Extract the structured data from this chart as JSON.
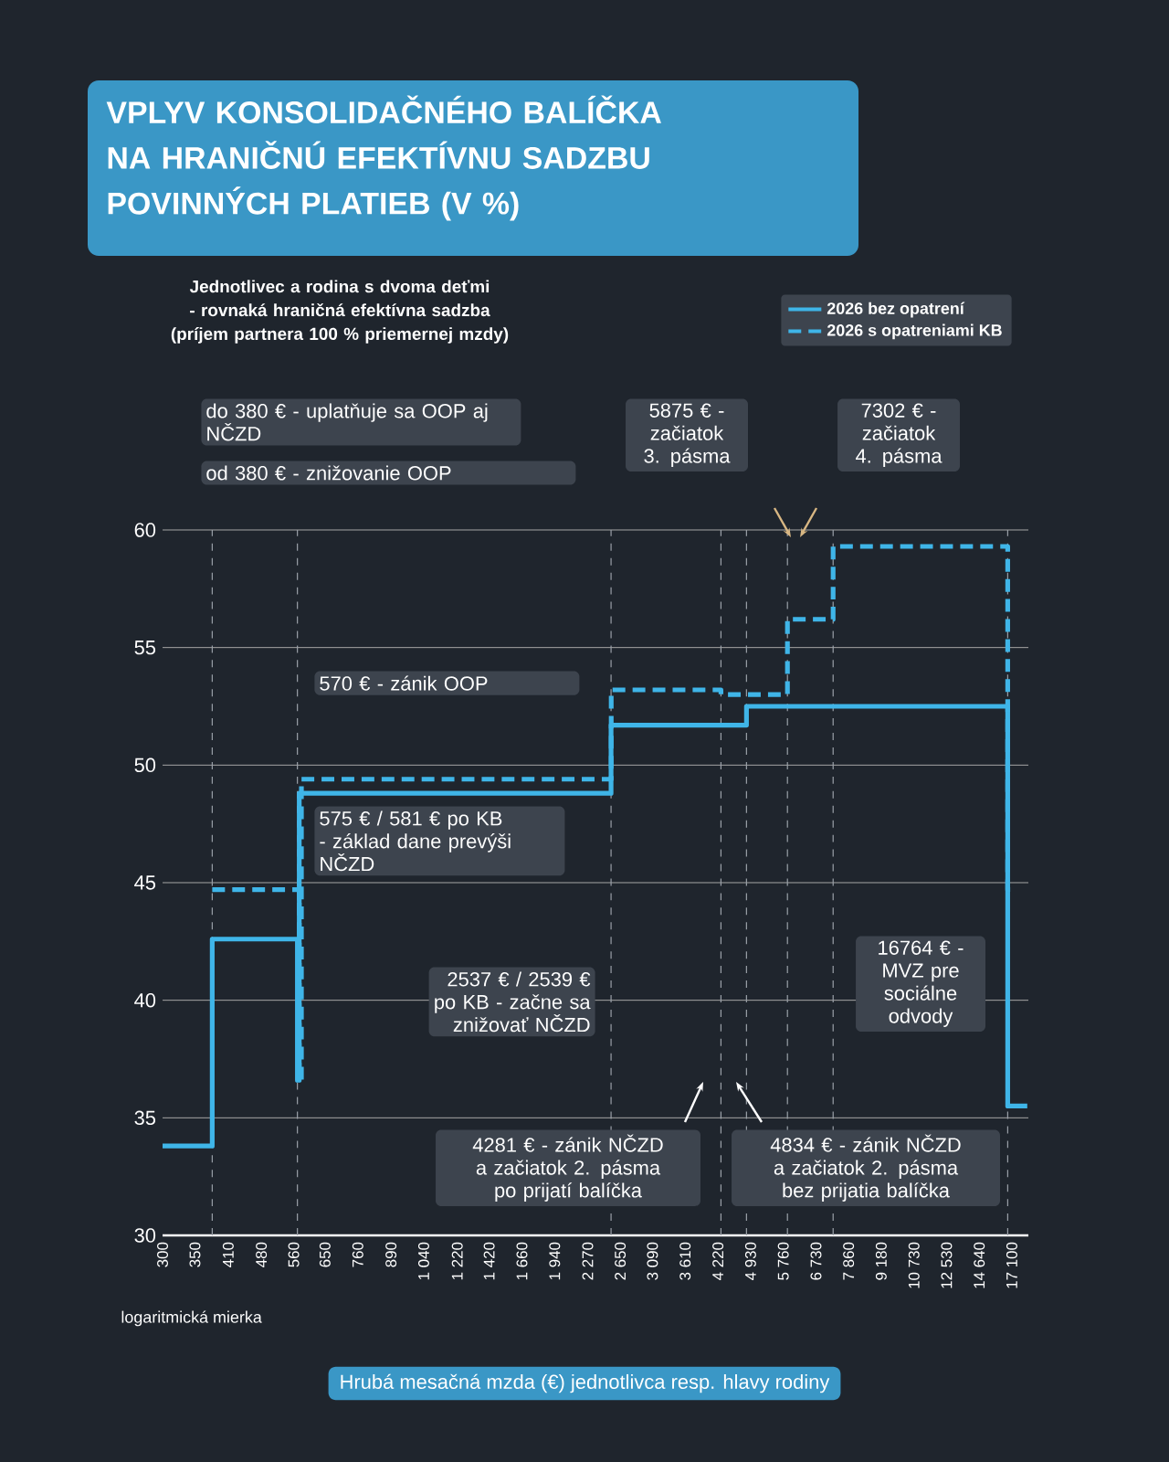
{
  "chart_data": {
    "type": "step",
    "title": "VPLYV KONSOLIDAČNÉHO BALÍČKA NA HRANIČNÚ EFEKTÍVNU SADZBU POVINNÝCH PLATIEB (V %)",
    "subtitle": "Jednotlivec a rodina s dvoma deťmi - rovnaká hraničná efektívna sadzba (príjem partnera 100 % priemernej mzdy)",
    "xlabel": "Hrubá mesačná mzda (€) jednotlivca resp. hlavy rodiny",
    "log": "x",
    "xlim": [
      300,
      18500
    ],
    "ylim": [
      30,
      60
    ],
    "xticks": [
      300,
      350,
      410,
      480,
      560,
      650,
      760,
      890,
      {
        "value": 1040,
        "label": "1 040"
      },
      {
        "value": 1220,
        "label": "1 220"
      },
      {
        "value": 1420,
        "label": "1 420"
      },
      {
        "value": 1660,
        "label": "1 660"
      },
      {
        "value": 1940,
        "label": "1 940"
      },
      {
        "value": 2270,
        "label": "2 270"
      },
      {
        "value": 2650,
        "label": "2 650"
      },
      {
        "value": 3090,
        "label": "3 090"
      },
      {
        "value": 3610,
        "label": "3 610"
      },
      {
        "value": 4220,
        "label": "4 220"
      },
      {
        "value": 4930,
        "label": "4 930"
      },
      {
        "value": 5760,
        "label": "5 760"
      },
      {
        "value": 6730,
        "label": "6 730"
      },
      {
        "value": 7860,
        "label": "7 860"
      },
      {
        "value": 9180,
        "label": "9 180"
      },
      {
        "value": 10730,
        "label": "10 730"
      },
      {
        "value": 12530,
        "label": "12 530"
      },
      {
        "value": 14640,
        "label": "14 640"
      },
      {
        "value": 17100,
        "label": "17 100"
      }
    ],
    "yticks": [
      30,
      35,
      40,
      45,
      50,
      55,
      60
    ],
    "grid": "y",
    "legend": "top right",
    "series": [
      {
        "name": "2026 bez opatrení",
        "color": "#3fb5e8",
        "line_style": "solid",
        "x": [
          300,
          380,
          570,
          575,
          2537,
          4834,
          16764,
          18400
        ],
        "values": [
          33.8,
          42.6,
          36.6,
          48.8,
          51.7,
          52.5,
          35.5,
          35.5
        ]
      },
      {
        "name": "2026 s opatreniami KB",
        "color": "#3fb5e8",
        "line_style": "dashed",
        "x": [
          380,
          575,
          581,
          2539,
          4281,
          5875,
          7302,
          16764,
          17100
        ],
        "values": [
          44.7,
          36.6,
          49.4,
          53.2,
          53.0,
          56.2,
          59.3,
          44.7,
          44.7
        ]
      }
    ],
    "ref_lines": [
      {
        "axis": "x",
        "value": 380,
        "color": "#9aa0a8",
        "line_style": "dashed"
      },
      {
        "axis": "x",
        "value": 570,
        "color": "#9aa0a8",
        "line_style": "dashed"
      },
      {
        "axis": "x",
        "value": 2537,
        "color": "#9aa0a8",
        "line_style": "dashed"
      },
      {
        "axis": "x",
        "value": 4281,
        "color": "#9aa0a8",
        "line_style": "dashed"
      },
      {
        "axis": "x",
        "value": 4834,
        "color": "#9aa0a8",
        "line_style": "dashed"
      },
      {
        "axis": "x",
        "value": 5875,
        "color": "#9aa0a8",
        "line_style": "dashed"
      },
      {
        "axis": "x",
        "value": 7302,
        "color": "#9aa0a8",
        "line_style": "dashed"
      },
      {
        "axis": "x",
        "value": 16764,
        "color": "#9aa0a8",
        "line_style": "dashed"
      }
    ],
    "annotations": [
      "do 380 € - uplatňuje sa OOP aj NČZD",
      "od 380 € - znižovanie OOP",
      "5875 € - začiatok 3. pásma",
      "7302 € - začiatok 4. pásma",
      "570 € - zánik OOP",
      "575 € / 581 € po KB - základ dane prevýši NČZD",
      "2537 € / 2539 € po KB - začne sa znižovať NČZD",
      "4281 € - zánik NČZD a začiatok 2. pásma po prijatí balíčka",
      "4834 € - zánik NČZD a začiatok 2. pásma bez prijatia balíčka",
      "16764 € - MVZ pre sociálne odvody",
      "logaritmická mierka"
    ]
  }
}
